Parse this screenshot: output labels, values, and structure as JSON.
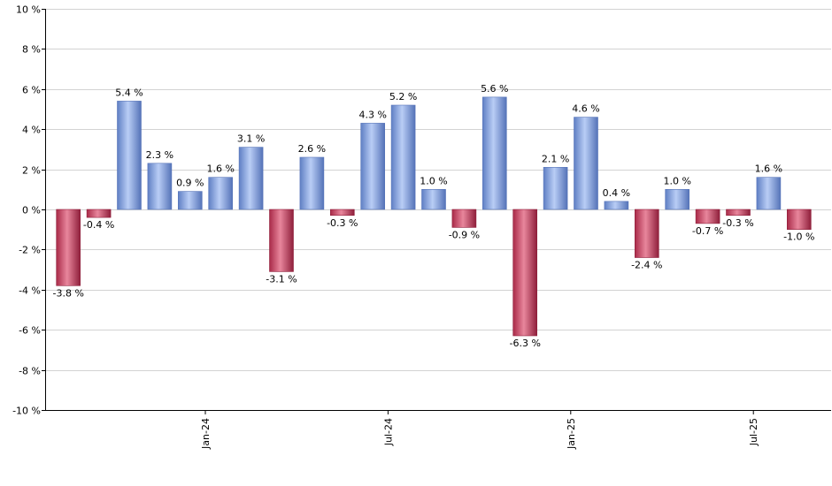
{
  "chart_data": {
    "type": "bar",
    "y_unit_suffix": " %",
    "ylim": [
      -10,
      10
    ],
    "y_ticks": [
      -10,
      -8,
      -6,
      -4,
      -2,
      0,
      2,
      4,
      6,
      8,
      10
    ],
    "grid": true,
    "legend": "none",
    "x_tick_labels": [
      {
        "label": "Jan-24",
        "after_bar": 4
      },
      {
        "label": "Jul-24",
        "after_bar": 10
      },
      {
        "label": "Jan-25",
        "after_bar": 16
      },
      {
        "label": "Jul-25",
        "after_bar": 22
      }
    ],
    "values": [
      -3.8,
      -0.4,
      5.4,
      2.3,
      0.9,
      1.6,
      3.1,
      -3.1,
      2.6,
      -0.3,
      4.3,
      5.2,
      1.0,
      -0.9,
      5.6,
      -6.3,
      2.1,
      4.6,
      0.4,
      -2.4,
      1.0,
      -0.7,
      -0.3,
      1.6,
      -1.0
    ],
    "data_labels": [
      "-3.8 %",
      "-0.4 %",
      "5.4 %",
      "2.3 %",
      "0.9 %",
      "1.6 %",
      "3.1 %",
      "-3.1 %",
      "2.6 %",
      "-0.3 %",
      "4.3 %",
      "5.2 %",
      "1.0 %",
      "-0.9 %",
      "5.6 %",
      "-6.3 %",
      "2.1 %",
      "4.6 %",
      "0.4 %",
      "-2.4 %",
      "1.0 %",
      "-0.7 %",
      "-0.3 %",
      "1.6 %",
      "-1.0 %"
    ],
    "colors": {
      "positive": "#7b9ce0",
      "positive_light": "#b9cdf5",
      "positive_dark": "#5573b8",
      "negative": "#c23a5a",
      "negative_light": "#e8869c",
      "negative_dark": "#8f1f3b"
    }
  }
}
